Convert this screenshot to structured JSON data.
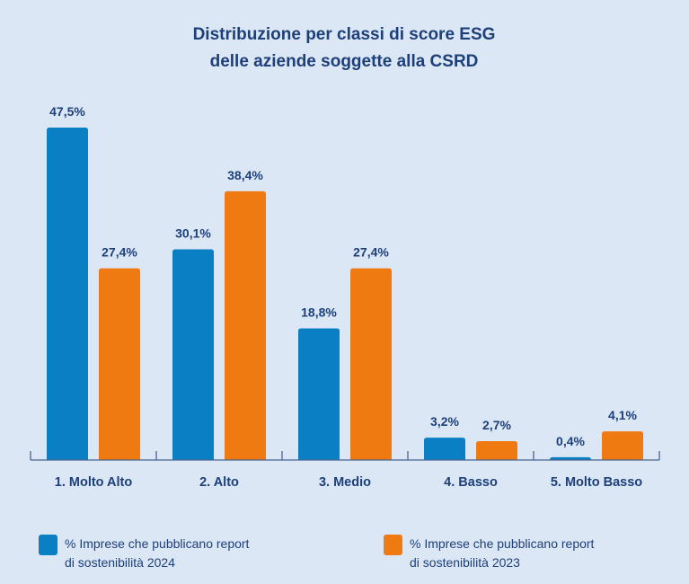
{
  "chart_data": {
    "type": "bar",
    "title": [
      "Distribuzione per classi di score ESG",
      "delle aziende soggette alla CSRD"
    ],
    "xlabel": "",
    "ylabel": "",
    "ylim": [
      0,
      50
    ],
    "grid": false,
    "legend_position": "bottom",
    "categories": [
      "1. Molto Alto",
      "2. Alto",
      "3. Medio",
      "4. Basso",
      "5. Molto Basso"
    ],
    "series": [
      {
        "name": "% Imprese che pubblicano report di sostenibilità 2024",
        "legend_lines": [
          "% Imprese che pubblicano report",
          "di sostenibilità 2024"
        ],
        "color": "#0a7fc4",
        "values": [
          47.5,
          30.1,
          18.8,
          3.2,
          0.4
        ],
        "labels": [
          "47,5%",
          "30,1%",
          "18,8%",
          "3,2%",
          "0,4%"
        ]
      },
      {
        "name": "% Imprese che pubblicano report di sostenibilità 2023",
        "legend_lines": [
          "% Imprese che pubblicano report",
          "di sostenibilità 2023"
        ],
        "color": "#f07a12",
        "values": [
          27.4,
          38.4,
          27.4,
          2.7,
          4.1
        ],
        "labels": [
          "27,4%",
          "38,4%",
          "27,4%",
          "2,7%",
          "4,1%"
        ]
      }
    ],
    "axis_color": "#4a6390"
  }
}
